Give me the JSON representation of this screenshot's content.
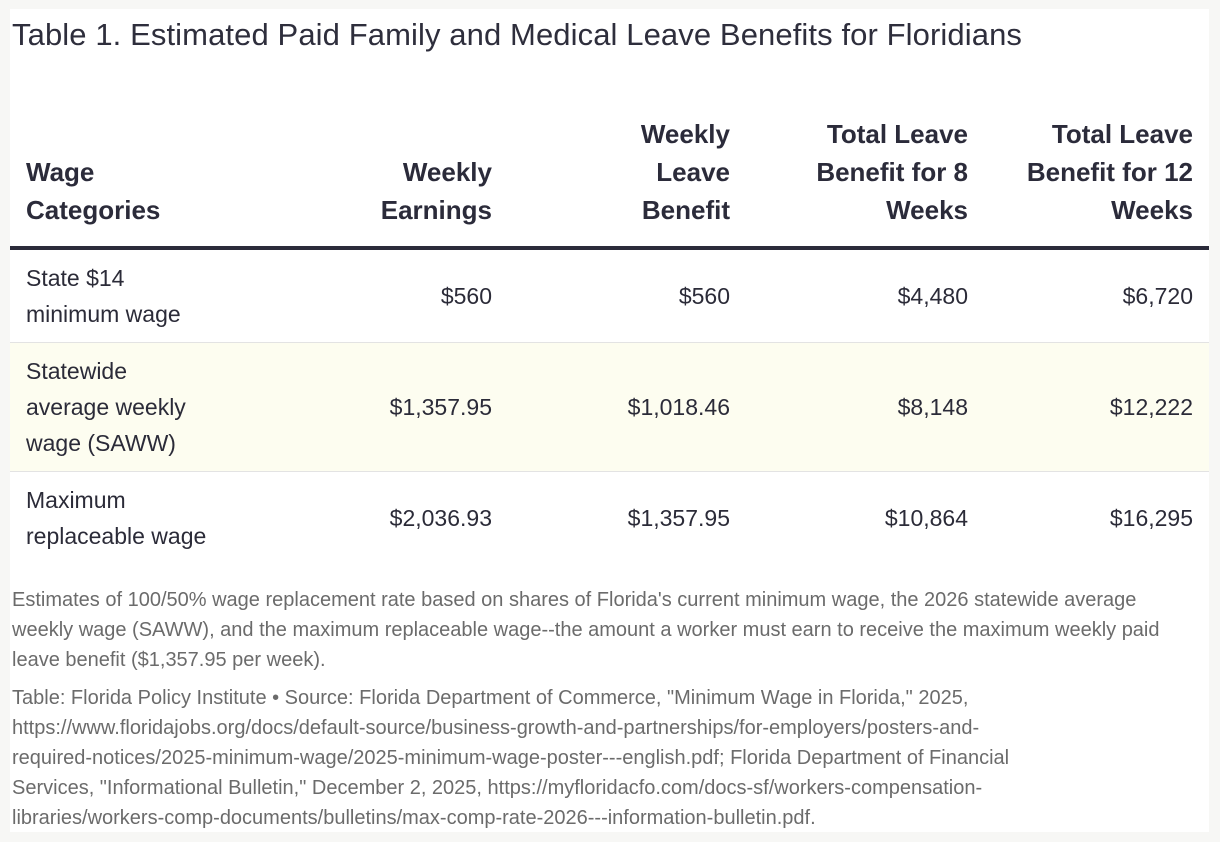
{
  "title": "Table 1. Estimated Paid Family and Medical Leave Benefits for Floridians",
  "chart_data": {
    "type": "table",
    "title": "Table 1. Estimated Paid Family and Medical Leave Benefits for Floridians",
    "columns": [
      "Wage Categories",
      "Weekly Earnings",
      "Weekly Leave Benefit",
      "Total Leave Benefit for 8 Weeks",
      "Total Leave Benefit for 12 Weeks"
    ],
    "rows": [
      [
        "State $14 minimum wage",
        "$560",
        "$560",
        "$4,480",
        "$6,720"
      ],
      [
        "Statewide average weekly wage (SAWW)",
        "$1,357.95",
        "$1,018.46",
        "$8,148",
        "$12,222"
      ],
      [
        "Maximum replaceable wage",
        "$2,036.93",
        "$1,357.95",
        "$10,864",
        "$16,295"
      ]
    ]
  },
  "footnote": "Estimates of 100/50% wage replacement rate based on shares of Florida's current minimum wage, the 2026 statewide average weekly wage (SAWW), and the maximum replaceable wage--the amount a worker must earn to receive the maximum weekly paid leave benefit ($1,357.95 per week).",
  "source": {
    "line1": "Table: Florida Policy Institute • Source: Florida Department of Commerce, \"Minimum Wage in Florida,\" 2025,",
    "line2": "https://www.floridajobs.org/docs/default-source/business-growth-and-partnerships/for-employers/posters-and-",
    "line3": "required-notices/2025-minimum-wage/2025-minimum-wage-poster---english.pdf; Florida Department of Financial",
    "line4": "Services, \"Informational Bulletin,\" December 2, 2025, https://myfloridacfo.com/docs-sf/workers-compensation-",
    "line5": "libraries/workers-comp-documents/bulletins/max-comp-rate-2026---information-bulletin.pdf."
  }
}
